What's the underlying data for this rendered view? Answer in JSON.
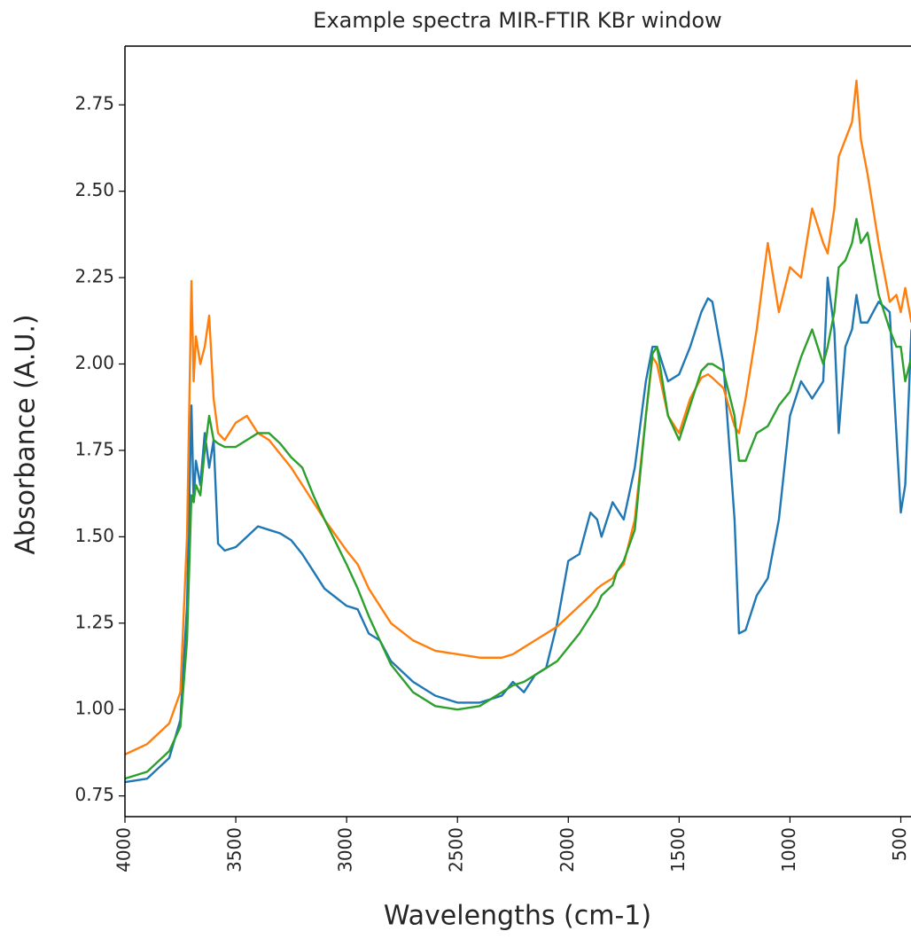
{
  "chart_data": {
    "type": "line",
    "title": "Example spectra MIR-FTIR KBr window",
    "x_label": "Wavelengths (cm-1)",
    "y_label": "Absorbance (A.U.)",
    "xlim": [
      4000,
      452
    ],
    "ylim": [
      0.69,
      2.92
    ],
    "xticks": [
      4000,
      3500,
      3000,
      2500,
      2000,
      1500,
      1000,
      500
    ],
    "yticks": [
      {
        "value": 0.75,
        "label": "0.75"
      },
      {
        "value": 1.0,
        "label": "1.00"
      },
      {
        "value": 1.25,
        "label": "1.25"
      },
      {
        "value": 1.5,
        "label": "1.50"
      },
      {
        "value": 1.75,
        "label": "1.75"
      },
      {
        "value": 2.0,
        "label": "2.00"
      },
      {
        "value": 2.25,
        "label": "2.25"
      },
      {
        "value": 2.5,
        "label": "2.50"
      },
      {
        "value": 2.75,
        "label": "2.75"
      }
    ],
    "grid": false,
    "x": [
      4000,
      3900,
      3800,
      3750,
      3720,
      3700,
      3690,
      3680,
      3660,
      3640,
      3620,
      3600,
      3580,
      3550,
      3500,
      3450,
      3400,
      3350,
      3300,
      3250,
      3200,
      3150,
      3100,
      3000,
      2950,
      2900,
      2850,
      2800,
      2700,
      2600,
      2500,
      2400,
      2350,
      2300,
      2250,
      2200,
      2150,
      2100,
      2050,
      2000,
      1950,
      1900,
      1870,
      1850,
      1800,
      1780,
      1750,
      1700,
      1650,
      1620,
      1600,
      1550,
      1500,
      1450,
      1400,
      1370,
      1350,
      1300,
      1250,
      1230,
      1200,
      1150,
      1100,
      1050,
      1000,
      950,
      900,
      850,
      830,
      800,
      780,
      750,
      720,
      700,
      680,
      650,
      600,
      550,
      520,
      500,
      480,
      452
    ],
    "series": [
      {
        "color": "#1f77b4",
        "values": [
          0.79,
          0.8,
          0.86,
          0.97,
          1.3,
          1.88,
          1.6,
          1.72,
          1.65,
          1.8,
          1.7,
          1.78,
          1.48,
          1.46,
          1.47,
          1.5,
          1.53,
          1.52,
          1.51,
          1.49,
          1.45,
          1.4,
          1.35,
          1.3,
          1.29,
          1.22,
          1.2,
          1.14,
          1.08,
          1.04,
          1.02,
          1.02,
          1.03,
          1.04,
          1.08,
          1.05,
          1.1,
          1.12,
          1.25,
          1.43,
          1.45,
          1.57,
          1.55,
          1.5,
          1.6,
          1.58,
          1.55,
          1.7,
          1.95,
          2.05,
          2.05,
          1.95,
          1.97,
          2.05,
          2.15,
          2.19,
          2.18,
          2.0,
          1.55,
          1.22,
          1.23,
          1.33,
          1.38,
          1.55,
          1.85,
          1.95,
          1.9,
          1.95,
          2.25,
          2.1,
          1.8,
          2.05,
          2.1,
          2.2,
          2.12,
          2.12,
          2.18,
          2.15,
          1.8,
          1.57,
          1.65,
          2.1
        ]
      },
      {
        "color": "#ff7f0e",
        "values": [
          0.87,
          0.9,
          0.96,
          1.05,
          1.5,
          2.24,
          1.95,
          2.08,
          2.0,
          2.05,
          2.14,
          1.9,
          1.8,
          1.78,
          1.83,
          1.85,
          1.8,
          1.78,
          1.74,
          1.7,
          1.65,
          1.6,
          1.55,
          1.46,
          1.42,
          1.35,
          1.3,
          1.25,
          1.2,
          1.17,
          1.16,
          1.15,
          1.15,
          1.15,
          1.16,
          1.18,
          1.2,
          1.22,
          1.24,
          1.27,
          1.3,
          1.33,
          1.35,
          1.36,
          1.38,
          1.4,
          1.42,
          1.55,
          1.85,
          2.02,
          2.0,
          1.85,
          1.8,
          1.9,
          1.96,
          1.97,
          1.96,
          1.93,
          1.82,
          1.8,
          1.9,
          2.1,
          2.35,
          2.15,
          2.28,
          2.25,
          2.45,
          2.35,
          2.32,
          2.45,
          2.6,
          2.65,
          2.7,
          2.82,
          2.65,
          2.55,
          2.35,
          2.18,
          2.2,
          2.15,
          2.22,
          2.12
        ]
      },
      {
        "color": "#2ca02c",
        "values": [
          0.8,
          0.82,
          0.88,
          0.95,
          1.2,
          1.62,
          1.6,
          1.65,
          1.62,
          1.75,
          1.85,
          1.78,
          1.77,
          1.76,
          1.76,
          1.78,
          1.8,
          1.8,
          1.77,
          1.73,
          1.7,
          1.62,
          1.55,
          1.42,
          1.35,
          1.27,
          1.2,
          1.13,
          1.05,
          1.01,
          1.0,
          1.01,
          1.03,
          1.05,
          1.07,
          1.08,
          1.1,
          1.12,
          1.14,
          1.18,
          1.22,
          1.27,
          1.3,
          1.33,
          1.36,
          1.4,
          1.43,
          1.52,
          1.85,
          2.03,
          2.05,
          1.85,
          1.78,
          1.88,
          1.98,
          2.0,
          2.0,
          1.98,
          1.85,
          1.72,
          1.72,
          1.8,
          1.82,
          1.88,
          1.92,
          2.02,
          2.1,
          2.0,
          2.05,
          2.15,
          2.28,
          2.3,
          2.35,
          2.42,
          2.35,
          2.38,
          2.2,
          2.1,
          2.05,
          2.05,
          1.95,
          2.02
        ]
      }
    ]
  }
}
